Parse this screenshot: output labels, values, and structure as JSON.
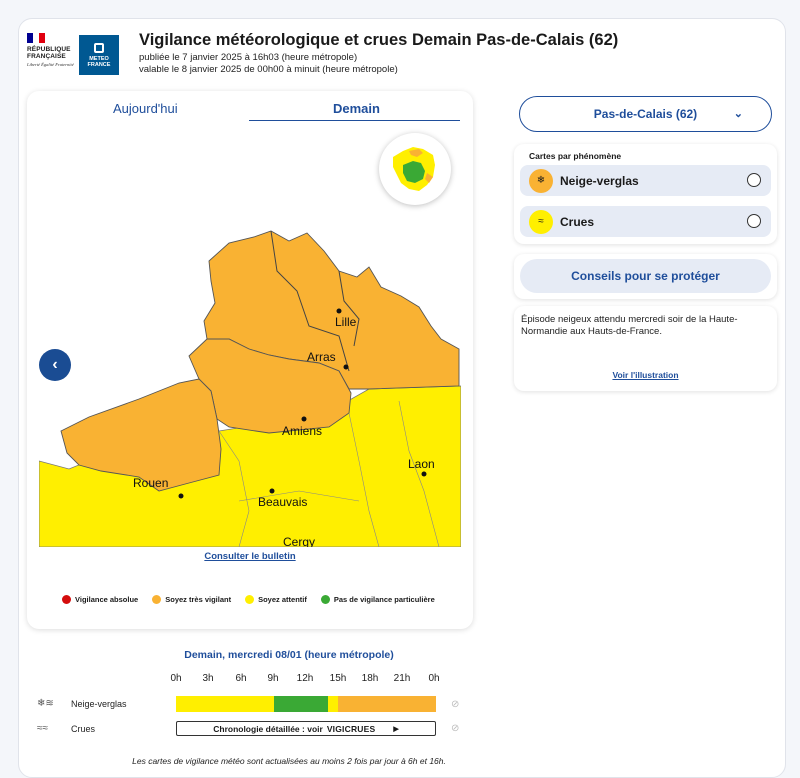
{
  "header": {
    "rf_logo_text": "RÉPUBLIQUE FRANÇAISE",
    "rf_motto": "Liberté Égalité Fraternité",
    "mf_logo_text": "METEO FRANCE",
    "title": "Vigilance météorologique et crues Demain Pas-de-Calais (62)",
    "published": "publiée le 7 janvier 2025 à 16h03 (heure métropole)",
    "valid": "valable le 8 janvier 2025 de 00h00 à minuit (heure métropole)"
  },
  "tabs": {
    "today": "Aujourd'hui",
    "tomorrow": "Demain",
    "active": "tomorrow"
  },
  "map": {
    "cities": [
      "Lille",
      "Arras",
      "Amiens",
      "Laon",
      "Rouen",
      "Beauvais",
      "Cergy"
    ],
    "colors": {
      "orange": "#f9b233",
      "yellow": "#ffef00",
      "green": "#3aa935",
      "red": "#d40d0d",
      "border": "#555555"
    },
    "bulletin_link": "Consulter le bulletin"
  },
  "legend": [
    {
      "label": "Vigilance absolue",
      "color": "#d40d0d"
    },
    {
      "label": "Soyez très vigilant",
      "color": "#f9b233"
    },
    {
      "label": "Soyez attentif",
      "color": "#ffef00"
    },
    {
      "label": "Pas de vigilance particulière",
      "color": "#3aa935"
    }
  ],
  "sidebar": {
    "department": "Pas-de-Calais (62)",
    "phenomena_title": "Cartes par phénomène",
    "phenomena": [
      {
        "label": "Neige-verglas",
        "icon": "snow-ice-icon",
        "color": "#f9b233"
      },
      {
        "label": "Crues",
        "icon": "flood-icon",
        "color": "#ffef00"
      }
    ],
    "advice_button": "Conseils pour se protéger",
    "episode_text": "Épisode neigeux attendu mercredi soir de la Haute-Normandie aux Hauts-de-France.",
    "episode_link": "Voir l'illustration"
  },
  "timeline": {
    "title": "Demain, mercredi 08/01 (heure métropole)",
    "hours": [
      "0h",
      "3h",
      "6h",
      "9h",
      "12h",
      "15h",
      "18h",
      "21h",
      "0h"
    ],
    "rows": [
      {
        "label": "Neige-verglas",
        "icon": "snow-ice-icon"
      },
      {
        "label": "Crues",
        "icon": "flood-icon"
      }
    ],
    "neige_segments": [
      {
        "from": 0,
        "to": 9,
        "color": "#ffef00"
      },
      {
        "from": 9,
        "to": 14,
        "color": "#3aa935"
      },
      {
        "from": 14,
        "to": 15,
        "color": "#ffef00"
      },
      {
        "from": 15,
        "to": 24,
        "color": "#f9b233"
      }
    ],
    "chrono_label": "Chronologie détaillée : voir",
    "chrono_brand": "VIGICRUES",
    "chrono_arrow": "▶"
  },
  "footnote": "Les cartes de vigilance météo sont actualisées au moins 2 fois par jour à 6h et 16h."
}
